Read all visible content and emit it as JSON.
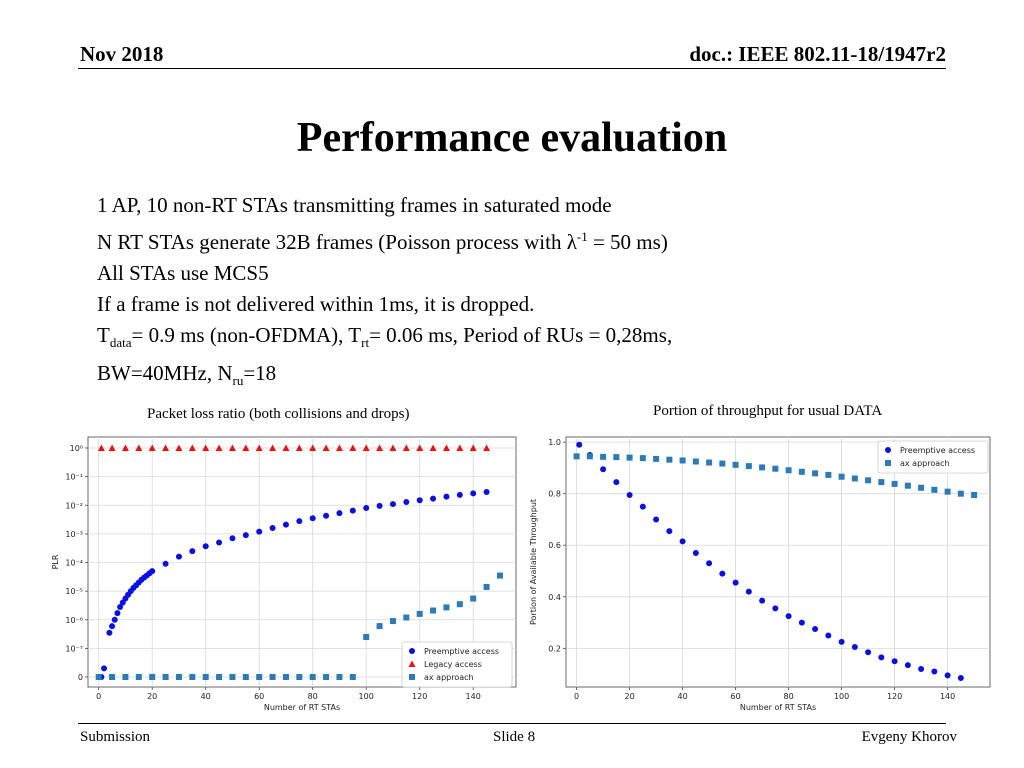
{
  "header": {
    "date": "Nov 2018",
    "doc": "doc.: IEEE 802.11-18/1947r2"
  },
  "title": "Performance evaluation",
  "bullets": {
    "line1": "1 AP, 10 non-RT STAs transmitting frames in saturated mode",
    "line2_a": "N RT STAs generate 32B frames (Poisson process with λ",
    "line2_sup": "-1",
    "line2_b": " = 50 ms)",
    "line3": "All STAs use MCS5",
    "line4": "If a frame is not delivered within 1ms, it is dropped.",
    "line5_t1": "T",
    "line5_sub1": "data",
    "line5_m1": "= 0.9 ms (non-OFDMA), T",
    "line5_sub2": "rt",
    "line5_m2": "= 0.06 ms, Period of RUs = 0,28ms,",
    "line6_a": "BW=40MHz, N",
    "line6_sub": "ru",
    "line6_b": "=18"
  },
  "footer": {
    "left": "Submission",
    "center": "Slide 8",
    "right": "Evgeny Khorov"
  },
  "colors": {
    "preemptive": "#0a10e0",
    "legacy": "#ee1111",
    "ax": "#2b7bb9",
    "grid": "#d8d8d8"
  },
  "chart_data": [
    {
      "type": "scatter",
      "title": "Packet loss ratio (both collisions and drops)",
      "xlabel": "Number of RT STAs",
      "ylabel": "PLR",
      "xlim": [
        -4,
        156
      ],
      "xticks": [
        0,
        20,
        40,
        60,
        80,
        100,
        120,
        140
      ],
      "yscale": "log (with 0 at bottom)",
      "yticks": [
        "0",
        "10⁻⁷",
        "10⁻⁶",
        "10⁻⁵",
        "10⁻⁴",
        "10⁻³",
        "10⁻²",
        "10⁻¹",
        "10⁰"
      ],
      "ytick_values": [
        0,
        1e-07,
        1e-06,
        1e-05,
        0.0001,
        0.001,
        0.01,
        0.1,
        1
      ],
      "grid": true,
      "legend_position": "bottom-right",
      "series": [
        {
          "name": "Preemptive access",
          "marker": "circle",
          "x": [
            1,
            2,
            4,
            5,
            6,
            7,
            8,
            9,
            10,
            11,
            12,
            13,
            14,
            15,
            16,
            17,
            18,
            19,
            20,
            25,
            30,
            35,
            40,
            45,
            50,
            55,
            60,
            65,
            70,
            75,
            80,
            85,
            90,
            95,
            100,
            105,
            110,
            115,
            120,
            125,
            130,
            135,
            140,
            145
          ],
          "y": [
            0,
            2e-08,
            3.5e-07,
            6e-07,
            1e-06,
            1.7e-06,
            2.8e-06,
            4e-06,
            5.5e-06,
            7.5e-06,
            1e-05,
            1.3e-05,
            1.6e-05,
            2e-05,
            2.5e-05,
            3e-05,
            3.5e-05,
            4.2e-05,
            5e-05,
            9e-05,
            0.00016,
            0.00025,
            0.00037,
            0.0005,
            0.0007,
            0.0009,
            0.0012,
            0.0016,
            0.0021,
            0.0028,
            0.0035,
            0.0043,
            0.0053,
            0.0065,
            0.008,
            0.0095,
            0.011,
            0.013,
            0.015,
            0.017,
            0.02,
            0.023,
            0.026,
            0.029
          ]
        },
        {
          "name": "Legacy access",
          "marker": "triangle",
          "x": [
            1,
            5,
            10,
            15,
            20,
            25,
            30,
            35,
            40,
            45,
            50,
            55,
            60,
            65,
            70,
            75,
            80,
            85,
            90,
            95,
            100,
            105,
            110,
            115,
            120,
            125,
            130,
            135,
            140,
            145
          ],
          "y": [
            1,
            1,
            1,
            1,
            1,
            1,
            1,
            1,
            1,
            1,
            1,
            1,
            1,
            1,
            1,
            1,
            1,
            1,
            1,
            1,
            1,
            1,
            1,
            1,
            1,
            1,
            1,
            1,
            1,
            1
          ]
        },
        {
          "name": "ax approach",
          "marker": "square",
          "x": [
            0,
            5,
            10,
            15,
            20,
            25,
            30,
            35,
            40,
            45,
            50,
            55,
            60,
            65,
            70,
            75,
            80,
            85,
            90,
            95,
            100,
            105,
            110,
            115,
            120,
            125,
            130,
            135,
            140,
            145,
            150
          ],
          "y": [
            0,
            0,
            0,
            0,
            0,
            0,
            0,
            0,
            0,
            0,
            0,
            0,
            0,
            0,
            0,
            0,
            0,
            0,
            0,
            1e-08,
            2.5e-07,
            6e-07,
            9e-07,
            1.2e-06,
            1.6e-06,
            2.1e-06,
            2.7e-06,
            3.5e-06,
            5.5e-06,
            1.4e-05,
            3.5e-05
          ]
        }
      ]
    },
    {
      "type": "scatter",
      "title": "Portion of throughput for usual DATA",
      "xlabel": "Number of RT STAs",
      "ylabel": "Portion of Available Throughput",
      "xlim": [
        -4,
        156
      ],
      "ylim": [
        0.05,
        1.02
      ],
      "xticks": [
        0,
        20,
        40,
        60,
        80,
        100,
        120,
        140
      ],
      "yticks": [
        0.2,
        0.4,
        0.6,
        0.8,
        1.0
      ],
      "ytick_labels": [
        "0.2",
        "0.4",
        "0.6",
        "0.8",
        "1.0"
      ],
      "grid": true,
      "legend_position": "top-right",
      "series": [
        {
          "name": "Preemptive access",
          "marker": "circle",
          "x": [
            1,
            5,
            10,
            15,
            20,
            25,
            30,
            35,
            40,
            45,
            50,
            55,
            60,
            65,
            70,
            75,
            80,
            85,
            90,
            95,
            100,
            105,
            110,
            115,
            120,
            125,
            130,
            135,
            140,
            145
          ],
          "y": [
            0.99,
            0.95,
            0.895,
            0.845,
            0.795,
            0.75,
            0.7,
            0.655,
            0.615,
            0.57,
            0.53,
            0.49,
            0.455,
            0.42,
            0.385,
            0.355,
            0.325,
            0.3,
            0.275,
            0.25,
            0.225,
            0.205,
            0.185,
            0.165,
            0.15,
            0.135,
            0.12,
            0.11,
            0.095,
            0.085
          ]
        },
        {
          "name": "ax approach",
          "marker": "square",
          "x": [
            0,
            5,
            10,
            15,
            20,
            25,
            30,
            35,
            40,
            45,
            50,
            55,
            60,
            65,
            70,
            75,
            80,
            85,
            90,
            95,
            100,
            105,
            110,
            115,
            120,
            125,
            130,
            135,
            140,
            145,
            150
          ],
          "y": [
            0.945,
            0.945,
            0.943,
            0.942,
            0.94,
            0.938,
            0.935,
            0.932,
            0.929,
            0.925,
            0.921,
            0.917,
            0.912,
            0.907,
            0.902,
            0.897,
            0.891,
            0.885,
            0.879,
            0.873,
            0.866,
            0.859,
            0.852,
            0.845,
            0.838,
            0.831,
            0.823,
            0.815,
            0.808,
            0.8,
            0.795
          ]
        }
      ]
    }
  ]
}
